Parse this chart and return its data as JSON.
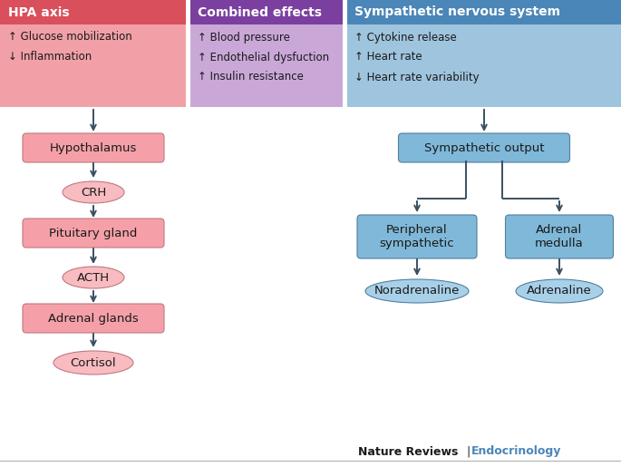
{
  "bg_color": "#ffffff",
  "hpa_header_color": "#d94f5c",
  "hpa_header_text": "HPA axis",
  "hpa_bg_color": "#f2a0a8",
  "hpa_effects_line1": "↑ Glucose mobilization",
  "hpa_effects_line2": "↓ Inflammation",
  "combined_header_color": "#7b3fa0",
  "combined_header_text": "Combined effects",
  "combined_bg_color": "#c9a8d8",
  "combined_effects_line1": "↑ Blood pressure",
  "combined_effects_line2": "↑ Endothelial dysfuction",
  "combined_effects_line3": "↑ Insulin resistance",
  "sns_header_color": "#4a86b8",
  "sns_header_text": "Sympathetic nervous system",
  "sns_bg_color": "#9ec4de",
  "sns_effects_line1": "↑ Cytokine release",
  "sns_effects_line2": "↑ Heart rate",
  "sns_effects_line3": "↓ Heart rate variability",
  "rect_fill_hpa": "#f5a0a8",
  "rect_edge_hpa": "#c07880",
  "rect_fill_sns": "#7fb8d8",
  "rect_edge_sns": "#5080a0",
  "ellipse_fill_hpa": "#f8bcc0",
  "ellipse_edge_hpa": "#c07880",
  "ellipse_fill_sns": "#a8d0e8",
  "ellipse_edge_sns": "#5080a0",
  "arrow_color": "#3a5060",
  "text_color": "#1a1a1a",
  "footer_bold": "Nature Reviews",
  "footer_pipe": " | ",
  "footer_color_text": "Endocrinology",
  "footer_color": "#4a86b8",
  "hpa_box1": "Hypothalamus",
  "hpa_box2": "Pituitary gland",
  "hpa_box3": "Adrenal glands",
  "hpa_el1": "CRH",
  "hpa_el2": "ACTH",
  "hpa_el3": "Cortisol",
  "sns_box1": "Sympathetic output",
  "sns_box2": "Peripheral\nsympathetic",
  "sns_box3": "Adrenal\nmedulla",
  "sns_el1": "Noradrenaline",
  "sns_el2": "Adrenaline"
}
